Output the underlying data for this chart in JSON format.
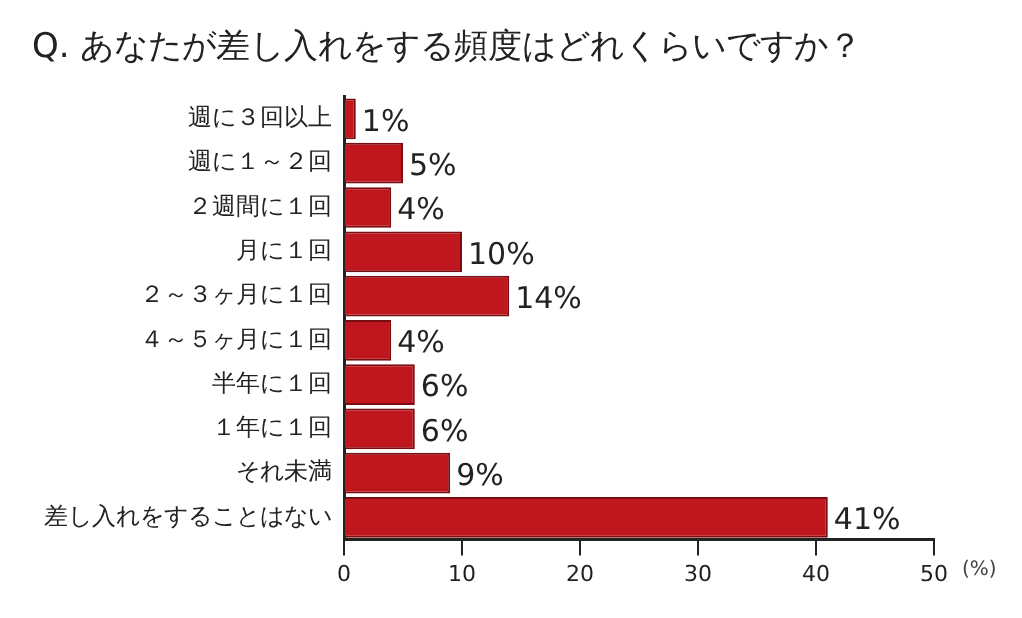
{
  "chart_data": {
    "type": "bar",
    "orientation": "horizontal",
    "title": "Q. あなたが差し入れをする頻度はどれくらいですか？",
    "xlabel": "(%)",
    "categories": [
      "週に３回以上",
      "週に１～２回",
      "２週間に１回",
      "月に１回",
      "２～３ヶ月に１回",
      "４～５ヶ月に１回",
      "半年に１回",
      "１年に１回",
      "それ未満",
      "差し入れをすることはない"
    ],
    "values": [
      1,
      5,
      4,
      10,
      14,
      4,
      6,
      6,
      9,
      41
    ],
    "value_labels": [
      "1%",
      "5%",
      "4%",
      "10%",
      "14%",
      "4%",
      "6%",
      "6%",
      "9%",
      "41%"
    ],
    "color": "#c0161e",
    "xlim": [
      0,
      50
    ],
    "xticks": [
      0,
      10,
      20,
      30,
      40,
      50
    ],
    "grid": false,
    "legend": false
  }
}
